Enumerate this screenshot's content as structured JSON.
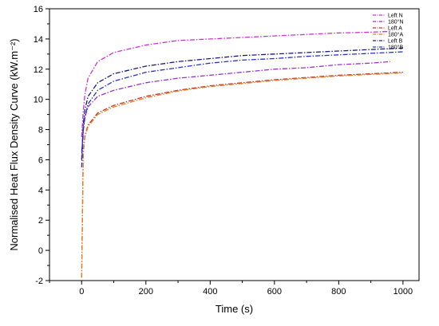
{
  "chart_data": {
    "type": "line",
    "title": "",
    "xlabel": "Time (s)",
    "ylabel": "Normalised Heat Flux Density Curve (kW.m⁻²)",
    "xlim": [
      -100,
      1050
    ],
    "ylim": [
      -2,
      16
    ],
    "xticks": [
      0,
      200,
      400,
      600,
      800,
      1000
    ],
    "yticks": [
      -2,
      0,
      2,
      4,
      6,
      8,
      10,
      12,
      14,
      16
    ],
    "grid": false,
    "legend_position": "top-right",
    "series": [
      {
        "name": "Left N",
        "color": "#cc33cc",
        "dash": "dashdot",
        "x": [
          0,
          5,
          10,
          20,
          50,
          100,
          200,
          300,
          400,
          500,
          600,
          700,
          800,
          900,
          960
        ],
        "y": [
          7.5,
          9.2,
          10.3,
          11.4,
          12.5,
          13.1,
          13.6,
          13.9,
          14.0,
          14.1,
          14.2,
          14.3,
          14.4,
          14.45,
          14.5
        ]
      },
      {
        "name": "180°N",
        "color": "#9933cc",
        "dash": "dashdot",
        "x": [
          0,
          5,
          10,
          20,
          50,
          100,
          200,
          300,
          400,
          500,
          600,
          700,
          800,
          900,
          960
        ],
        "y": [
          6.5,
          8.0,
          8.8,
          9.5,
          10.2,
          10.6,
          11.1,
          11.4,
          11.6,
          11.8,
          12.0,
          12.1,
          12.3,
          12.4,
          12.5
        ]
      },
      {
        "name": "Left A",
        "color": "#c0392b",
        "dash": "dashdot",
        "x": [
          0,
          5,
          10,
          20,
          50,
          100,
          200,
          300,
          400,
          500,
          600,
          700,
          800,
          900,
          1000
        ],
        "y": [
          -1.8,
          6.5,
          7.6,
          8.3,
          9.1,
          9.6,
          10.2,
          10.6,
          10.9,
          11.1,
          11.3,
          11.45,
          11.6,
          11.7,
          11.8
        ]
      },
      {
        "name": "180°A",
        "color": "#e67e22",
        "dash": "dashdot",
        "x": [
          0,
          5,
          10,
          20,
          50,
          100,
          200,
          300,
          400,
          500,
          600,
          700,
          800,
          900,
          1000
        ],
        "y": [
          -1.8,
          6.4,
          7.5,
          8.2,
          9.0,
          9.5,
          10.1,
          10.55,
          10.85,
          11.05,
          11.25,
          11.4,
          11.55,
          11.65,
          11.75
        ]
      },
      {
        "name": "Left B",
        "color": "#1a1a80",
        "dash": "dashdot",
        "x": [
          0,
          5,
          10,
          20,
          50,
          100,
          200,
          300,
          400,
          500,
          600,
          700,
          800,
          900,
          1000
        ],
        "y": [
          6.0,
          8.3,
          9.3,
          10.2,
          11.1,
          11.7,
          12.2,
          12.5,
          12.7,
          12.9,
          13.0,
          13.1,
          13.2,
          13.3,
          13.4
        ]
      },
      {
        "name": "180°B",
        "color": "#2233cc",
        "dash": "dashdot",
        "x": [
          0,
          5,
          10,
          20,
          50,
          100,
          200,
          300,
          400,
          500,
          600,
          700,
          800,
          900,
          1000
        ],
        "y": [
          5.5,
          7.9,
          8.8,
          9.7,
          10.6,
          11.2,
          11.8,
          12.1,
          12.4,
          12.6,
          12.7,
          12.85,
          12.95,
          13.05,
          13.15
        ]
      }
    ]
  }
}
